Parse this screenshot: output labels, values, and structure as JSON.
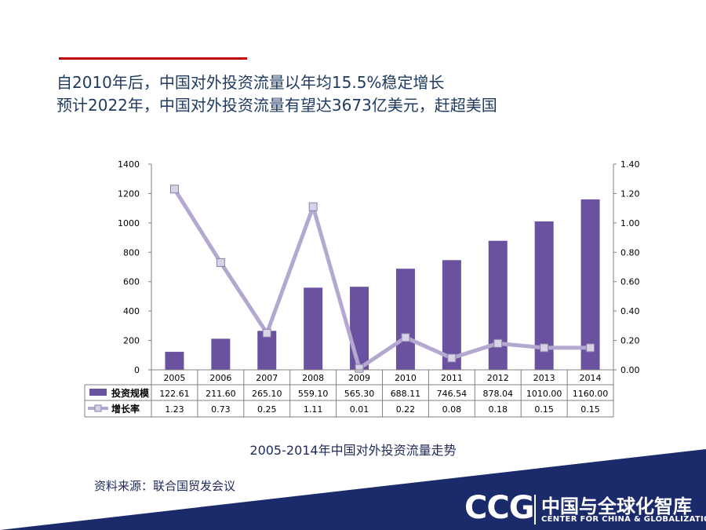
{
  "headline": {
    "line1": "自2010年后，中国对外投资流量以年均15.5%稳定增长",
    "line2": "预计2022年，中国对外投资流量有望达3673亿美元，赶超美国"
  },
  "caption": "2005-2014年中国对外投资流量走势",
  "source": "资料来源：联合国贸发会议",
  "logo": {
    "mark": "CCG",
    "cn": "中国与全球化智库",
    "en": "CENTER FOR CHINA & GLOBALIZATION"
  },
  "colors": {
    "bar": "#6b52a0",
    "line": "#b4a8d0",
    "accent": "#c00000",
    "banner": "#1b2a6b",
    "text": "#1f3a5f"
  },
  "chart_data": {
    "type": "bar",
    "categories": [
      "2005",
      "2006",
      "2007",
      "2008",
      "2009",
      "2010",
      "2011",
      "2012",
      "2013",
      "2014"
    ],
    "series": [
      {
        "name": "投资规模",
        "type": "bar",
        "axis": "left",
        "values": [
          122.61,
          211.6,
          265.1,
          559.1,
          565.3,
          688.11,
          746.54,
          878.04,
          1010.0,
          1160.0
        ],
        "labels": [
          "122.61",
          "211.60",
          "265.10",
          "559.10",
          "565.30",
          "688.11",
          "746.54",
          "878.04",
          "1010.00",
          "1160.00"
        ]
      },
      {
        "name": "增长率",
        "type": "line",
        "axis": "right",
        "values": [
          1.23,
          0.73,
          0.25,
          1.11,
          0.01,
          0.22,
          0.08,
          0.18,
          0.15,
          0.15
        ],
        "labels": [
          "1.23",
          "0.73",
          "0.25",
          "1.11",
          "0.01",
          "0.22",
          "0.08",
          "0.18",
          "0.15",
          "0.15"
        ]
      }
    ],
    "y_left": {
      "range": [
        0,
        1400
      ],
      "ticks": [
        "0",
        "200",
        "400",
        "600",
        "800",
        "1000",
        "1200",
        "1400"
      ]
    },
    "y_right": {
      "range": [
        0,
        1.4
      ],
      "ticks": [
        "0.00",
        "0.20",
        "0.40",
        "0.60",
        "0.80",
        "1.00",
        "1.20",
        "1.40"
      ]
    },
    "grid": false,
    "legend": "data-table"
  }
}
